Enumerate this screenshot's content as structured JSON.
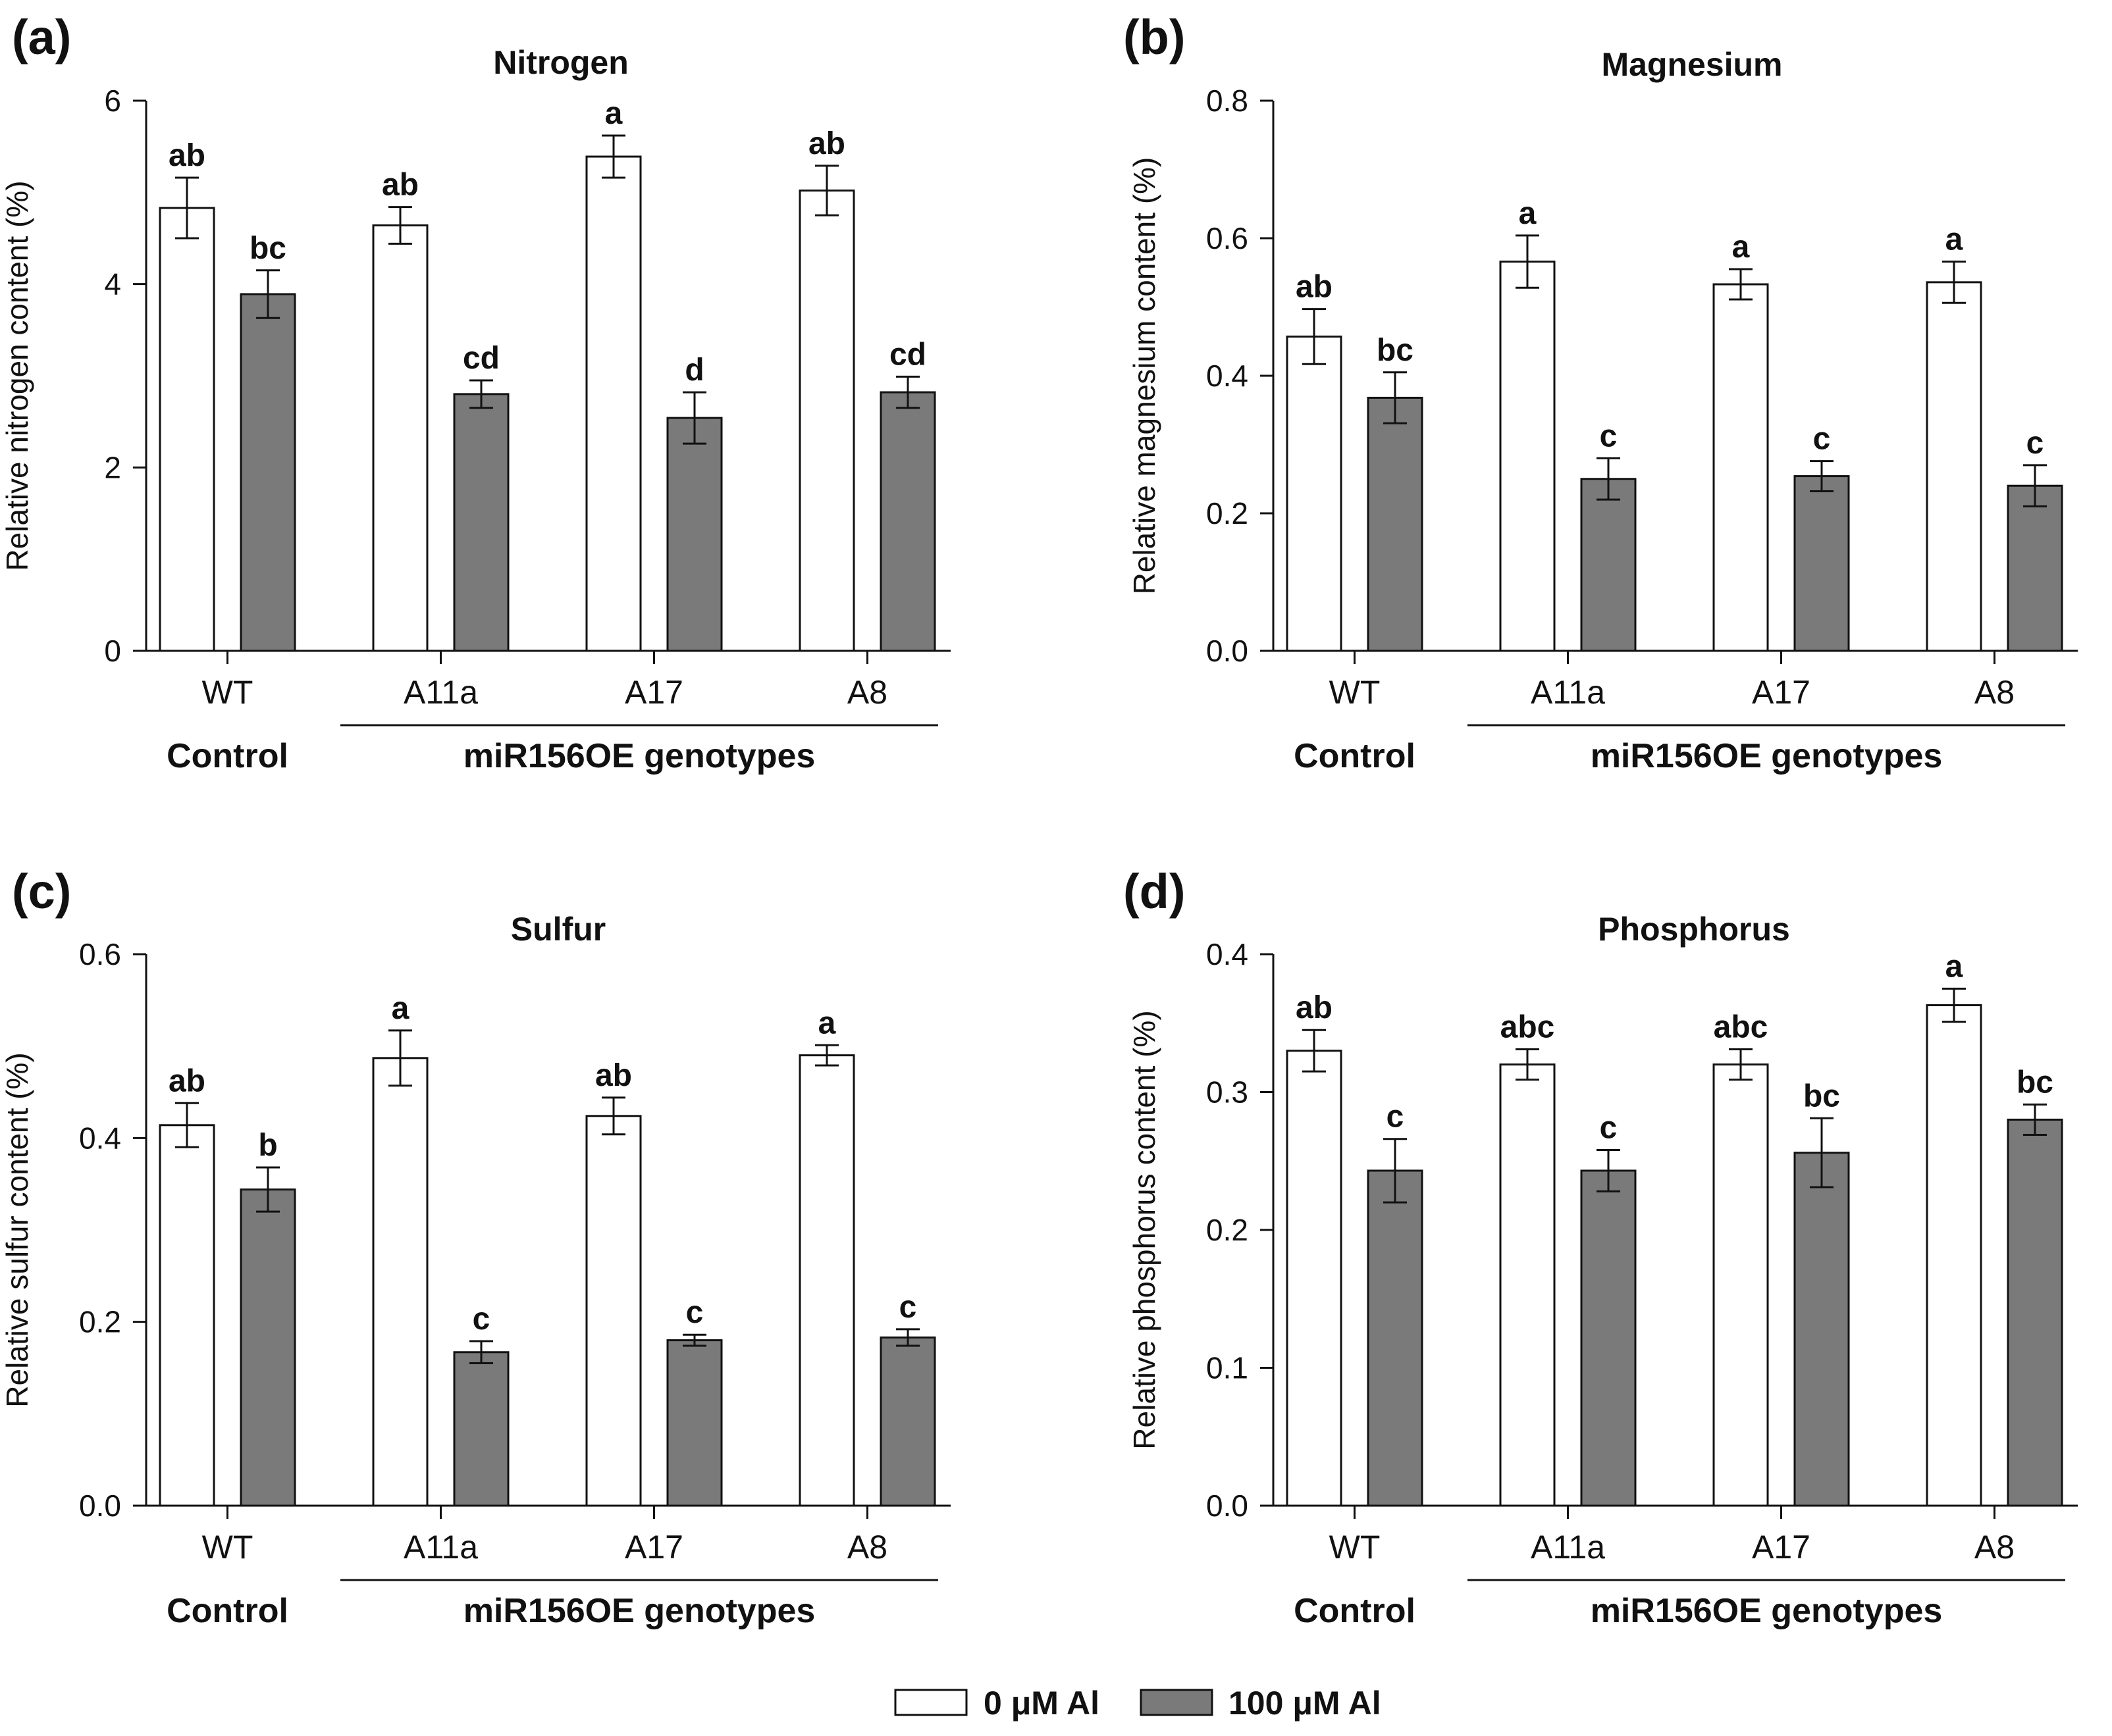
{
  "colors": {
    "control_fill": "#ffffff",
    "al_fill": "#7a7a7a",
    "stroke": "#111111"
  },
  "legend": {
    "items": [
      {
        "label": "0 μM Al",
        "color": "#ffffff"
      },
      {
        "label": "100 μM Al",
        "color": "#7a7a7a"
      }
    ]
  },
  "chart_data": [
    {
      "panel": "(a)",
      "type": "bar",
      "title": "Nitrogen",
      "ylabel": "Relative nitrogen content (%)",
      "ylim": [
        0,
        6
      ],
      "yticks": [
        0,
        2,
        4,
        6
      ],
      "ytick_labels": [
        "0",
        "2",
        "4",
        "6"
      ],
      "categories": [
        "WT",
        "A11a",
        "A17",
        "A8"
      ],
      "groups": [
        {
          "label": "Control",
          "categories": [
            "WT"
          ]
        },
        {
          "label": "miR156OE genotypes",
          "categories": [
            "A11a",
            "A17",
            "A8"
          ]
        }
      ],
      "series": [
        {
          "name": "0 μM Al",
          "values": [
            4.83,
            4.64,
            5.39,
            5.02
          ],
          "errors": [
            0.33,
            0.2,
            0.23,
            0.27
          ],
          "labels": [
            "ab",
            "ab",
            "a",
            "ab"
          ]
        },
        {
          "name": "100 μM Al",
          "values": [
            3.89,
            2.8,
            2.54,
            2.82
          ],
          "errors": [
            0.26,
            0.15,
            0.28,
            0.17
          ],
          "labels": [
            "bc",
            "cd",
            "d",
            "cd"
          ]
        }
      ]
    },
    {
      "panel": "(b)",
      "type": "bar",
      "title": "Magnesium",
      "ylabel": "Relative magnesium content (%)",
      "ylim": [
        0,
        0.8
      ],
      "yticks": [
        0,
        0.2,
        0.4,
        0.6,
        0.8
      ],
      "ytick_labels": [
        "0.0",
        "0.2",
        "0.4",
        "0.6",
        "0.8"
      ],
      "categories": [
        "WT",
        "A11a",
        "A17",
        "A8"
      ],
      "groups": [
        {
          "label": "Control",
          "categories": [
            "WT"
          ]
        },
        {
          "label": "miR156OE genotypes",
          "categories": [
            "A11a",
            "A17",
            "A8"
          ]
        }
      ],
      "series": [
        {
          "name": "0 μM Al",
          "values": [
            0.457,
            0.566,
            0.533,
            0.536
          ],
          "errors": [
            0.04,
            0.038,
            0.022,
            0.03
          ],
          "labels": [
            "ab",
            "a",
            "a",
            "a"
          ]
        },
        {
          "name": "100 μM Al",
          "values": [
            0.368,
            0.25,
            0.254,
            0.24
          ],
          "errors": [
            0.037,
            0.03,
            0.022,
            0.03
          ],
          "labels": [
            "bc",
            "c",
            "c",
            "c"
          ]
        }
      ]
    },
    {
      "panel": "(c)",
      "type": "bar",
      "title": "Sulfur",
      "ylabel": "Relative sulfur content (%)",
      "ylim": [
        0,
        0.6
      ],
      "yticks": [
        0,
        0.2,
        0.4,
        0.6
      ],
      "ytick_labels": [
        "0.0",
        "0.2",
        "0.4",
        "0.6"
      ],
      "categories": [
        "WT",
        "A11a",
        "A17",
        "A8"
      ],
      "groups": [
        {
          "label": "Control",
          "categories": [
            "WT"
          ]
        },
        {
          "label": "miR156OE genotypes",
          "categories": [
            "A11a",
            "A17",
            "A8"
          ]
        }
      ],
      "series": [
        {
          "name": "0 μM Al",
          "values": [
            0.414,
            0.487,
            0.424,
            0.49
          ],
          "errors": [
            0.024,
            0.03,
            0.02,
            0.011
          ],
          "labels": [
            "ab",
            "a",
            "ab",
            "a"
          ]
        },
        {
          "name": "100 μM Al",
          "values": [
            0.344,
            0.167,
            0.18,
            0.183
          ],
          "errors": [
            0.024,
            0.012,
            0.006,
            0.009
          ],
          "labels": [
            "b",
            "c",
            "c",
            "c"
          ]
        }
      ]
    },
    {
      "panel": "(d)",
      "type": "bar",
      "title": "Phosphorus",
      "ylabel": "Relative phosphorus content (%)",
      "ylim": [
        0,
        0.4
      ],
      "yticks": [
        0,
        0.1,
        0.2,
        0.3,
        0.4
      ],
      "ytick_labels": [
        "0.0",
        "0.1",
        "0.2",
        "0.3",
        "0.4"
      ],
      "categories": [
        "WT",
        "A11a",
        "A17",
        "A8"
      ],
      "groups": [
        {
          "label": "Control",
          "categories": [
            "WT"
          ]
        },
        {
          "label": "miR156OE genotypes",
          "categories": [
            "A11a",
            "A17",
            "A8"
          ]
        }
      ],
      "series": [
        {
          "name": "0 μM Al",
          "values": [
            0.33,
            0.32,
            0.32,
            0.363
          ],
          "errors": [
            0.015,
            0.011,
            0.011,
            0.012
          ],
          "labels": [
            "ab",
            "abc",
            "abc",
            "a"
          ]
        },
        {
          "name": "100 μM Al",
          "values": [
            0.243,
            0.243,
            0.256,
            0.28
          ],
          "errors": [
            0.023,
            0.015,
            0.025,
            0.011
          ],
          "labels": [
            "c",
            "c",
            "bc",
            "bc"
          ]
        }
      ]
    }
  ]
}
